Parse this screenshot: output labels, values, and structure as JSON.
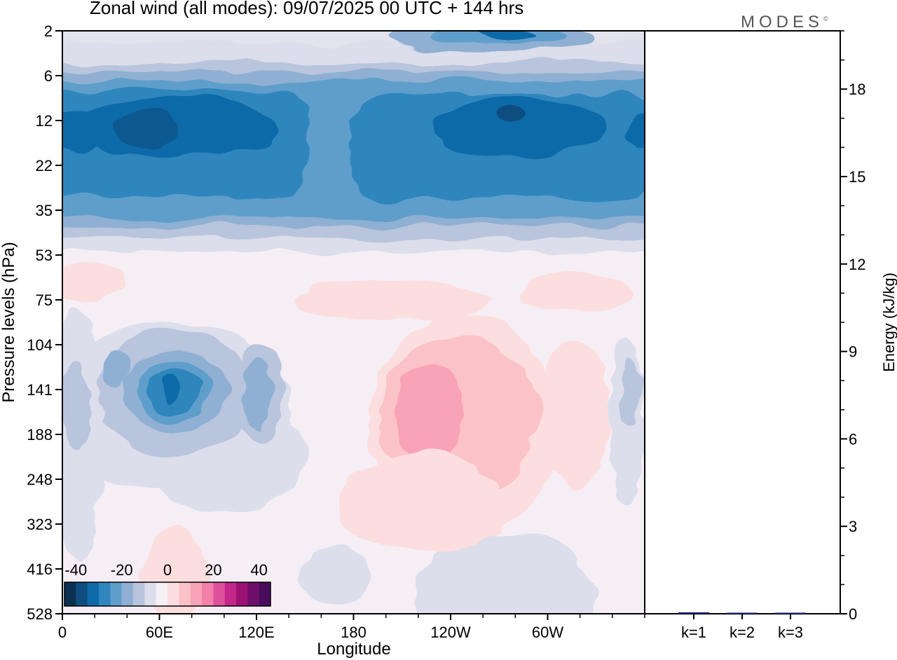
{
  "chart_data": [
    {
      "type": "heatmap",
      "title": "Zonal wind (all modes):  09/07/2025  00 UTC  + 144 hrs",
      "xlabel": "Longitude",
      "ylabel": "Pressure levels (hPa)",
      "x_tick_labels": [
        "0",
        "60E",
        "120E",
        "180",
        "120W",
        "60W"
      ],
      "y_tick_labels": [
        "2",
        "6",
        "12",
        "22",
        "35",
        "53",
        "75",
        "104",
        "141",
        "188",
        "248",
        "323",
        "416",
        "528"
      ],
      "colorbar": {
        "tick_labels": [
          "-40",
          "-20",
          "0",
          "20",
          "40"
        ],
        "levels": [
          -40,
          -35,
          -30,
          -25,
          -20,
          -15,
          -10,
          -5,
          0,
          5,
          10,
          15,
          20,
          25,
          30,
          35,
          40
        ],
        "colors": [
          "#0d2f52",
          "#0f4d80",
          "#0f6aa8",
          "#2f86bd",
          "#5f9ecb",
          "#8fb0d2",
          "#b9c4dd",
          "#dcdeeb",
          "#f5eff5",
          "#fcdedf",
          "#fbc2c7",
          "#f8a3b6",
          "#f280aa",
          "#e0519d",
          "#c3278a",
          "#9c1272",
          "#6e0f6b",
          "#4a0d5e"
        ]
      },
      "features": [
        {
          "kind": "upper-easterly-core",
          "lon": [
            0,
            150
          ],
          "p": [
            9,
            28
          ],
          "u": -30
        },
        {
          "kind": "upper-easterly-core",
          "lon": [
            215,
            320
          ],
          "p": [
            9,
            25
          ],
          "u": -32
        },
        {
          "kind": "lower-easterly-jet",
          "lon": [
            70,
            75
          ],
          "p": 141,
          "u": -35
        },
        {
          "kind": "westerly-jet",
          "lon": [
            240,
            255
          ],
          "p": [
            130,
            185
          ],
          "u": 22
        }
      ]
    },
    {
      "type": "bar",
      "categories": [
        "k=1",
        "k=2",
        "k=3"
      ],
      "values": [
        0.05,
        0.02,
        0.02
      ],
      "ylabel": "Energy (kJ/kg)",
      "y_tick_labels": [
        "0",
        "3",
        "6",
        "9",
        "12",
        "15",
        "18"
      ],
      "ylim": [
        0,
        20
      ],
      "bar_color": "#1a237e"
    }
  ],
  "logo": {
    "text": "MODES",
    "mark": "©"
  }
}
